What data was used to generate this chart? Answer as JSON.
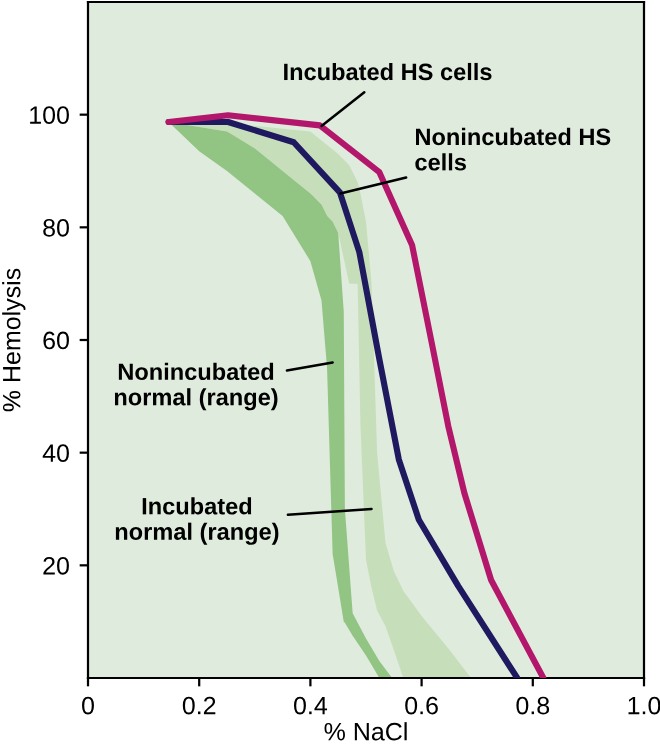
{
  "chart_data": {
    "type": "line",
    "xlabel": "% NaCl",
    "ylabel": "% Hemolysis",
    "xlim": [
      0,
      1.0
    ],
    "xticks": [
      0,
      0.2,
      0.4,
      0.6,
      0.8,
      {
        "value": 1.0,
        "label": "1.0"
      }
    ],
    "ylim": [
      0,
      120
    ],
    "yticks": [
      20,
      40,
      60,
      80,
      100
    ],
    "grid": false,
    "legend": false,
    "series": [
      {
        "type": "area",
        "color": "#c6dfba",
        "x": [
          0.145,
          0.25,
          0.35,
          0.4,
          0.45,
          0.47,
          0.485,
          0.49,
          0.5,
          0.51,
          0.52,
          0.535,
          0.55,
          0.567,
          0.6,
          0.65,
          0.689
        ],
        "lower": [
          98.7,
          97,
          90,
          86,
          79,
          70,
          70,
          45,
          21,
          16,
          12,
          9.2,
          5,
          0,
          0,
          0,
          0
        ],
        "values": [
          null,
          null,
          null,
          null,
          null,
          null,
          null,
          null,
          null,
          null,
          null,
          null,
          null,
          null,
          null,
          null,
          null
        ],
        "upper": [
          98.7,
          98.5,
          97.5,
          97,
          93,
          91,
          88,
          86,
          81,
          70,
          40,
          24,
          19,
          15.5,
          11,
          5,
          0
        ]
      },
      {
        "type": "area",
        "color": "#92c484",
        "x": [
          0.145,
          0.2,
          0.25,
          0.3,
          0.35,
          0.4,
          0.42,
          0.43,
          0.44,
          0.45,
          0.46,
          0.462,
          0.476,
          0.5,
          0.524,
          0.547
        ],
        "lower": [
          98.7,
          93.5,
          90,
          86,
          82,
          74,
          67,
          55,
          22,
          16,
          10,
          9.8,
          7.5,
          4,
          0,
          0
        ],
        "values": [
          null,
          null,
          null,
          null,
          null,
          null,
          null,
          null,
          null,
          null,
          null,
          null,
          null,
          null,
          null,
          null
        ],
        "upper": [
          98.7,
          97.8,
          97,
          94,
          90,
          86,
          84,
          82,
          81,
          79,
          65,
          30,
          11.5,
          7,
          3,
          0
        ]
      },
      {
        "color": "#1f1a60",
        "x": [
          0.145,
          0.252,
          0.37,
          0.453,
          0.488,
          0.524,
          0.559,
          0.595,
          0.666,
          0.772
        ],
        "values": [
          98.7,
          98.7,
          95.1,
          86.2,
          75.6,
          56.6,
          38.8,
          28.1,
          16.3,
          0
        ]
      },
      {
        "color": "#b3176c",
        "x": [
          0.145,
          0.252,
          0.417,
          0.524,
          0.583,
          0.618,
          0.648,
          0.677,
          0.725,
          0.819
        ],
        "values": [
          98.7,
          99.9,
          98.1,
          89.8,
          76.8,
          59.6,
          44.7,
          32.8,
          17.4,
          0
        ]
      }
    ],
    "annotations": [
      {
        "text": "Incubated HS cells",
        "x": 0.42,
        "y": 98
      },
      {
        "text": "Nonincubated HS\ncells",
        "x": 0.454,
        "y": 86
      },
      {
        "text": "Nonincubated\nnormal (range)",
        "x": 0.44,
        "y": 56
      },
      {
        "text": "Incubated\nnormal (range)",
        "x": 0.51,
        "y": 30
      }
    ]
  }
}
